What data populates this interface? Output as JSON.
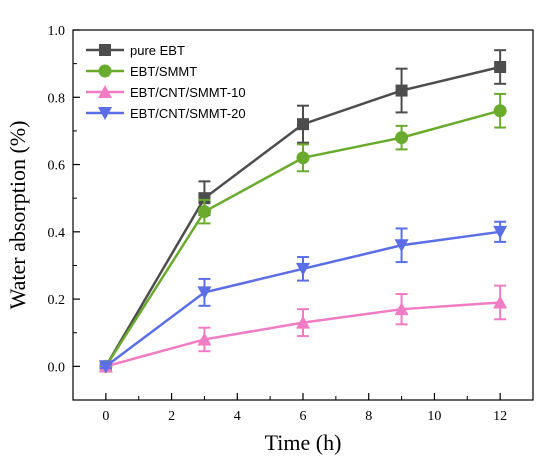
{
  "chart_data": {
    "type": "line",
    "xlabel": "Time (h)",
    "ylabel": "Water absorption (%)",
    "xlim": [
      -1,
      13
    ],
    "ylim": [
      -0.1,
      1.0
    ],
    "x_ticks": [
      0,
      2,
      4,
      6,
      8,
      10,
      12
    ],
    "y_ticks": [
      0.0,
      0.2,
      0.4,
      0.6,
      0.8,
      1.0
    ],
    "y_tick_labels": [
      "0.0",
      "0.2",
      "0.4",
      "0.6",
      "0.8",
      "1.0"
    ],
    "x": [
      0,
      3,
      6,
      9,
      12
    ],
    "legend_position": "top-left",
    "series": [
      {
        "name": "pure EBT",
        "color": "#4d4d4d",
        "marker": "square",
        "values": [
          0,
          0.5,
          0.72,
          0.82,
          0.89
        ],
        "errors": [
          0.005,
          0.05,
          0.055,
          0.065,
          0.05
        ]
      },
      {
        "name": "EBT/SMMT",
        "color": "#6aab2e",
        "marker": "circle",
        "values": [
          0,
          0.46,
          0.62,
          0.68,
          0.76
        ],
        "errors": [
          0.005,
          0.035,
          0.04,
          0.035,
          0.05
        ]
      },
      {
        "name": "EBT/CNT/SMMT-10",
        "color": "#f07cc4",
        "marker": "triangle-up",
        "values": [
          0,
          0.08,
          0.13,
          0.17,
          0.19
        ],
        "errors": [
          0.005,
          0.035,
          0.04,
          0.045,
          0.05
        ]
      },
      {
        "name": "EBT/CNT/SMMT-20",
        "color": "#5b6ee6",
        "marker": "triangle-down",
        "values": [
          0,
          0.22,
          0.29,
          0.36,
          0.4
        ],
        "errors": [
          0.005,
          0.04,
          0.035,
          0.05,
          0.03
        ]
      }
    ]
  }
}
